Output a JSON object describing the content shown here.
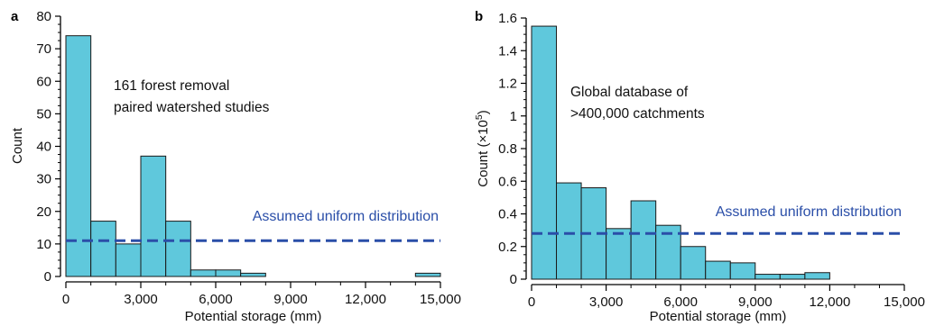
{
  "chart_data": [
    {
      "type": "bar",
      "panel_label": "a",
      "bin_edges": [
        0,
        1000,
        2000,
        3000,
        4000,
        5000,
        6000,
        7000,
        8000,
        9000,
        10000,
        11000,
        12000,
        13000,
        14000,
        15000
      ],
      "values": [
        74,
        17,
        10,
        37,
        17,
        2,
        2,
        1,
        0,
        0,
        0,
        0,
        0,
        0,
        1
      ],
      "xlabel": "Potential storage (mm)",
      "ylabel": "Count",
      "xlim": [
        0,
        15000
      ],
      "ylim": [
        0,
        80
      ],
      "x_ticks": [
        0,
        3000,
        6000,
        9000,
        12000,
        15000
      ],
      "x_tick_labels": [
        "0",
        "3,000",
        "6,000",
        "9,000",
        "12,000",
        "15,000"
      ],
      "y_ticks": [
        0,
        10,
        20,
        30,
        40,
        50,
        60,
        70,
        80
      ],
      "y_tick_labels": [
        "0",
        "10",
        "20",
        "30",
        "40",
        "50",
        "60",
        "70",
        "80"
      ],
      "reference_line": {
        "value": 11,
        "label": "Assumed uniform distribution",
        "color": "#2a4ea8"
      },
      "annotation": [
        "161 forest removal",
        "paired watershed studies"
      ],
      "bar_color": "#5fc8dc",
      "grid": false
    },
    {
      "type": "bar",
      "panel_label": "b",
      "bin_edges": [
        0,
        1000,
        2000,
        3000,
        4000,
        5000,
        6000,
        7000,
        8000,
        9000,
        10000,
        11000,
        12000
      ],
      "values": [
        1.55,
        0.59,
        0.56,
        0.31,
        0.48,
        0.33,
        0.2,
        0.11,
        0.1,
        0.03,
        0.03,
        0.04
      ],
      "xlabel": "Potential storage (mm)",
      "ylabel": "Count (×10",
      "ylabel_exponent": "5",
      "ylabel_suffix": ")",
      "xlim": [
        0,
        15000
      ],
      "ylim": [
        0,
        1.6
      ],
      "x_ticks": [
        0,
        3000,
        6000,
        9000,
        12000,
        15000
      ],
      "x_tick_labels": [
        "0",
        "3,000",
        "6,000",
        "9,000",
        "12,000",
        "15,000"
      ],
      "y_ticks": [
        0,
        0.2,
        0.4,
        0.6,
        0.8,
        1.0,
        1.2,
        1.4,
        1.6
      ],
      "y_tick_labels": [
        "0",
        "0.2",
        "0.4",
        "0.6",
        "0.8",
        "1",
        "1.2",
        "1.4",
        "1.6"
      ],
      "reference_line": {
        "value": 0.28,
        "label": "Assumed uniform distribution",
        "color": "#2a4ea8"
      },
      "annotation": [
        "Global database of",
        ">400,000 catchments"
      ],
      "bar_color": "#5fc8dc",
      "grid": false
    }
  ]
}
